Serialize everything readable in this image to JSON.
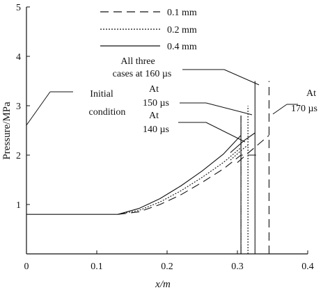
{
  "chart_data": {
    "type": "line",
    "xlabel": "x/m",
    "ylabel": "Pressure/MPa",
    "xlim": [
      0,
      0.4
    ],
    "ylim": [
      0,
      5
    ],
    "xticks": [
      "0",
      "0.1",
      "0.2",
      "0.3",
      "0.4"
    ],
    "yticks": [
      "1",
      "2",
      "3",
      "4",
      "5"
    ],
    "grid": false,
    "legend_position": "top",
    "legend": [
      {
        "label": "0.1 mm",
        "dash": "long-dash"
      },
      {
        "label": "0.2 mm",
        "dash": "dotted"
      },
      {
        "label": "0.4 mm",
        "dash": "solid"
      }
    ],
    "initial_condition": {
      "x": [
        0,
        0.13
      ],
      "y": 0.8
    },
    "series": [
      {
        "name": "0.1 mm",
        "time": "140 µs",
        "x": [
          0.13,
          0.16,
          0.19,
          0.22,
          0.25,
          0.28,
          0.305,
          0.33
        ],
        "y": [
          0.8,
          0.85,
          1.0,
          1.2,
          1.45,
          1.72,
          2.0,
          2.0
        ],
        "front": 0.305
      },
      {
        "name": "0.2 mm",
        "time": "140 µs",
        "x": [
          0.13,
          0.16,
          0.19,
          0.22,
          0.25,
          0.28,
          0.305
        ],
        "y": [
          0.8,
          0.88,
          1.05,
          1.28,
          1.55,
          1.85,
          2.15
        ],
        "front": 0.305
      },
      {
        "name": "0.4 mm",
        "time": "140 µs",
        "x": [
          0.13,
          0.16,
          0.19,
          0.22,
          0.25,
          0.28,
          0.305
        ],
        "y": [
          0.8,
          0.92,
          1.12,
          1.38,
          1.68,
          2.02,
          2.4
        ],
        "front": 0.305
      },
      {
        "name": "0.1 mm",
        "time": "170 µs",
        "x": [
          0.3,
          0.32,
          0.345
        ],
        "y": [
          1.85,
          2.1,
          2.4
        ],
        "front": 0.345
      },
      {
        "name": "0.2 mm",
        "time": "150 µs",
        "x": [
          0.29,
          0.31,
          0.315
        ],
        "y": [
          1.9,
          2.15,
          2.2
        ],
        "front": 0.315
      },
      {
        "name": "0.4 mm",
        "time": "160 µs",
        "x": [
          0.29,
          0.31,
          0.325
        ],
        "y": [
          2.05,
          2.3,
          2.45
        ],
        "front": 0.325
      }
    ],
    "annotations": [
      {
        "lines": [
          "Initial",
          "condition"
        ]
      },
      {
        "lines": [
          "All three",
          "cases at 160 µs"
        ]
      },
      {
        "lines": [
          "At",
          "150 µs"
        ]
      },
      {
        "lines": [
          "At",
          "140 µs"
        ]
      },
      {
        "lines": [
          "At",
          "170 µs"
        ]
      }
    ]
  }
}
